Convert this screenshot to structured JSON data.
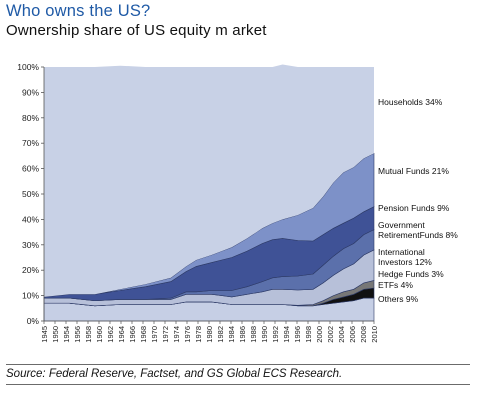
{
  "header": {
    "title": "Who owns the US?",
    "subtitle": "Ownership share of US equity m arket"
  },
  "footer": {
    "source": "Source: Federal Reserve,  Factset, and GS Global ECS Research."
  },
  "colors": {
    "background": "#c8d1e6",
    "others": "#c6cfe5",
    "etfs": "#111111",
    "hedge": "#777777",
    "international": "#b7c0d9",
    "government": "#5b70ab",
    "pension": "#3f5296",
    "mutual": "#7d91c8",
    "households": "#c8d1e6",
    "boundary": "#2d3a66"
  },
  "chart_data": {
    "type": "area",
    "stacked": true,
    "ylim": [
      0,
      100
    ],
    "yticks": [
      0,
      10,
      20,
      30,
      40,
      50,
      60,
      70,
      80,
      90,
      100
    ],
    "ytick_labels": [
      "0%",
      "10%",
      "20%",
      "30%",
      "40%",
      "50%",
      "60%",
      "70%",
      "80%",
      "90%",
      "100%"
    ],
    "xlim": [
      1945,
      2010
    ],
    "xtick_labels": [
      "1945",
      "1950",
      "1954",
      "1956",
      "1958",
      "1960",
      "1962",
      "1964",
      "1966",
      "1968",
      "1970",
      "1972",
      "1974",
      "1976",
      "1978",
      "1980",
      "1982",
      "1984",
      "1986",
      "1988",
      "1990",
      "1992",
      "1994",
      "1996",
      "1998",
      "2000",
      "2002",
      "2004",
      "2006",
      "2008",
      "2010"
    ],
    "x": [
      1945,
      1950,
      1955,
      1960,
      1965,
      1970,
      1973,
      1975,
      1978,
      1980,
      1982,
      1985,
      1988,
      1990,
      1992,
      1995,
      1998,
      2000,
      2002,
      2004,
      2006,
      2008,
      2010
    ],
    "series": [
      {
        "name": "Others 9%",
        "values": [
          7,
          7,
          6,
          6.5,
          6.5,
          6.5,
          7.5,
          7.5,
          7.5,
          7,
          6.5,
          6.5,
          6.5,
          6.5,
          6.5,
          6,
          6,
          6.5,
          7,
          7.5,
          8,
          9,
          9
        ]
      },
      {
        "name": "ETFs 4%",
        "values": [
          0,
          0,
          0,
          0,
          0,
          0,
          0,
          0,
          0,
          0,
          0,
          0,
          0,
          0,
          0,
          0,
          0,
          0.5,
          1.5,
          2,
          2.5,
          3.5,
          4
        ]
      },
      {
        "name": "Hedge Funds 3%",
        "values": [
          0,
          0,
          0,
          0,
          0,
          0,
          0,
          0,
          0,
          0,
          0,
          0,
          0,
          0,
          0,
          0.2,
          0.5,
          1,
          1.5,
          2,
          2,
          2.5,
          3
        ]
      },
      {
        "name": "International Investors 12%",
        "values": [
          2,
          2,
          2,
          2,
          2,
          2,
          3,
          3,
          3,
          3,
          3,
          4,
          5,
          6,
          6,
          6,
          6,
          7,
          8,
          9,
          10,
          11,
          12
        ]
      },
      {
        "name": "Government RetirementFunds  8%",
        "values": [
          0,
          0,
          0,
          0,
          0,
          0.5,
          1,
          1,
          1.5,
          2,
          2.5,
          3,
          4,
          4.5,
          5,
          5.5,
          6,
          7,
          7.5,
          8,
          8,
          8,
          8
        ]
      },
      {
        "name": "Pension Funds 9%",
        "values": [
          0.5,
          1.5,
          2.5,
          3.5,
          5,
          6.5,
          8,
          10,
          11,
          12,
          13,
          14,
          15,
          15,
          15,
          14,
          13,
          12,
          11,
          10,
          10,
          9,
          9
        ]
      },
      {
        "name": "Mutual Funds 21%",
        "values": [
          0,
          0,
          0,
          0.5,
          1,
          1.5,
          2,
          2.5,
          3,
          3.5,
          4,
          5,
          6,
          6.5,
          7.5,
          10,
          13,
          15,
          18,
          20,
          20,
          21,
          21
        ]
      },
      {
        "name": "Households 34%",
        "values": [
          90.5,
          89.5,
          89.5,
          88,
          85.5,
          83,
          78.5,
          76,
          74,
          72.5,
          71,
          67.5,
          63.5,
          61.5,
          61,
          58.3,
          55.5,
          51,
          45.5,
          41.5,
          39.5,
          36,
          34
        ]
      }
    ]
  }
}
